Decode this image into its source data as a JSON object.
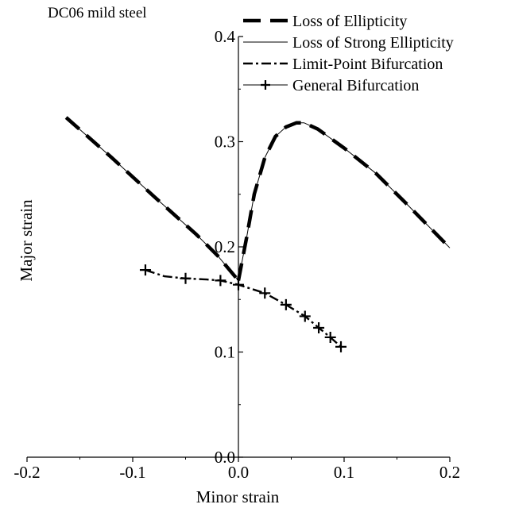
{
  "chart_data": {
    "type": "line",
    "title": "DC06 mild steel",
    "xlabel": "Minor strain",
    "ylabel": "Major strain",
    "xlim": [
      -0.2,
      0.2
    ],
    "ylim": [
      0.0,
      0.4
    ],
    "x_ticks": [
      -0.2,
      -0.1,
      0.0,
      0.1,
      0.2
    ],
    "x_tick_labels": [
      "-0.2",
      "-0.1",
      "0.0",
      "0.1",
      "0.2"
    ],
    "y_ticks": [
      0.0,
      0.1,
      0.2,
      0.3,
      0.4
    ],
    "y_tick_labels": [
      "0.0",
      "0.1",
      "0.2",
      "0.3",
      "0.4"
    ],
    "grid": false,
    "legend_position": "top-right",
    "series": [
      {
        "name": "Loss of Ellipticity",
        "style": "dashed-thick",
        "color": "#000000",
        "segments": [
          {
            "x": [
              -0.163,
              -0.12,
              -0.08,
              -0.04,
              -0.02,
              0.0
            ],
            "y": [
              0.323,
              0.285,
              0.248,
              0.212,
              0.192,
              0.168
            ]
          },
          {
            "x": [
              0.0,
              0.008,
              0.015,
              0.025,
              0.035,
              0.045,
              0.055,
              0.062,
              0.075,
              0.1,
              0.13,
              0.16,
              0.2
            ],
            "y": [
              0.168,
              0.21,
              0.25,
              0.285,
              0.305,
              0.314,
              0.318,
              0.318,
              0.312,
              0.294,
              0.27,
              0.24,
              0.199
            ]
          }
        ]
      },
      {
        "name": "Loss of Strong Ellipticity",
        "style": "solid-thin",
        "color": "#000000",
        "segments": [
          {
            "x": [
              -0.163,
              -0.12,
              -0.08,
              -0.04,
              -0.02,
              0.0
            ],
            "y": [
              0.323,
              0.285,
              0.248,
              0.212,
              0.192,
              0.168
            ]
          },
          {
            "x": [
              0.0,
              0.008,
              0.015,
              0.025,
              0.035,
              0.045,
              0.055,
              0.062,
              0.075,
              0.1,
              0.13,
              0.16,
              0.2
            ],
            "y": [
              0.168,
              0.21,
              0.25,
              0.285,
              0.305,
              0.314,
              0.318,
              0.318,
              0.312,
              0.294,
              0.27,
              0.24,
              0.199
            ]
          }
        ]
      },
      {
        "name": "Limit-Point Bifurcation",
        "style": "dash-dot",
        "color": "#000000",
        "x": [
          -0.088,
          -0.07,
          -0.05,
          -0.03,
          -0.017,
          0.0,
          0.025,
          0.045,
          0.063,
          0.076,
          0.087,
          0.097
        ],
        "y": [
          0.178,
          0.172,
          0.17,
          0.169,
          0.168,
          0.164,
          0.156,
          0.145,
          0.134,
          0.123,
          0.114,
          0.105
        ]
      },
      {
        "name": "General Bifurcation",
        "style": "plus-markers",
        "color": "#000000",
        "x": [
          -0.088,
          -0.05,
          -0.017,
          0.0,
          0.025,
          0.045,
          0.063,
          0.076,
          0.087,
          0.097
        ],
        "y": [
          0.178,
          0.17,
          0.168,
          0.164,
          0.156,
          0.145,
          0.134,
          0.123,
          0.114,
          0.105
        ]
      }
    ]
  }
}
